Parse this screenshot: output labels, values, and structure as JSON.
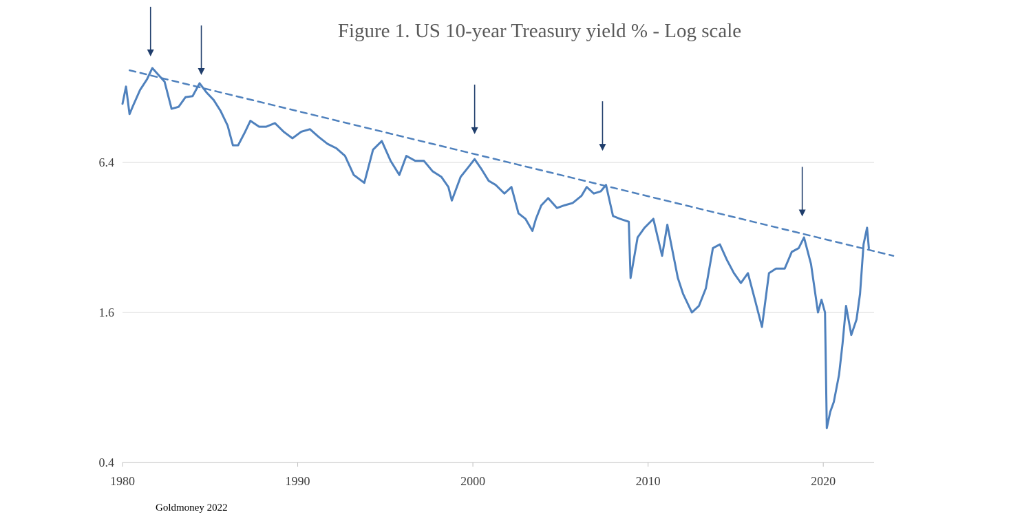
{
  "chart_data": {
    "type": "line",
    "title": "Figure 1. US 10-year Treasury yield % - Log scale",
    "xlabel": "",
    "ylabel": "",
    "y_scale": "log",
    "xlim": [
      1980,
      2024
    ],
    "ylim": [
      0.4,
      25.6
    ],
    "grid": true,
    "legend": "none",
    "x_ticks": [
      "1980",
      "1990",
      "2000",
      "2010",
      "2020"
    ],
    "y_ticks": [
      "0.4",
      "1.6",
      "6.4"
    ],
    "source": "Goldmoney 2022",
    "colors": {
      "series": "#4f81bd",
      "arrow": "#1f3d6b",
      "grid": "#d9d9d9",
      "axis": "#bfbfbf",
      "title": "#595959"
    },
    "series": [
      {
        "style": "solid",
        "x": [
          1980.0,
          1980.2,
          1980.4,
          1980.6,
          1981.0,
          1981.4,
          1981.7,
          1982.0,
          1982.4,
          1982.8,
          1983.2,
          1983.6,
          1984.0,
          1984.4,
          1984.8,
          1985.2,
          1985.6,
          1986.0,
          1986.3,
          1986.6,
          1987.0,
          1987.3,
          1987.8,
          1988.2,
          1988.7,
          1989.2,
          1989.7,
          1990.2,
          1990.7,
          1991.2,
          1991.7,
          1992.2,
          1992.7,
          1993.2,
          1993.8,
          1994.3,
          1994.8,
          1995.3,
          1995.8,
          1996.2,
          1996.7,
          1997.2,
          1997.7,
          1998.2,
          1998.6,
          1998.8,
          1999.3,
          1999.8,
          2000.1,
          2000.5,
          2000.9,
          2001.3,
          2001.8,
          2002.2,
          2002.6,
          2003.0,
          2003.4,
          2003.6,
          2003.9,
          2004.3,
          2004.8,
          2005.2,
          2005.7,
          2006.2,
          2006.5,
          2006.9,
          2007.3,
          2007.6,
          2008.0,
          2008.4,
          2008.9,
          2009.0,
          2009.4,
          2009.8,
          2010.3,
          2010.8,
          2011.1,
          2011.7,
          2012.0,
          2012.5,
          2012.9,
          2013.3,
          2013.7,
          2014.1,
          2014.5,
          2014.9,
          2015.3,
          2015.7,
          2016.1,
          2016.5,
          2016.9,
          2017.3,
          2017.8,
          2018.2,
          2018.6,
          2018.9,
          2019.3,
          2019.7,
          2019.9,
          2020.1,
          2020.2,
          2020.4,
          2020.6,
          2020.9,
          2021.1,
          2021.3,
          2021.6,
          2021.9,
          2022.1,
          2022.3,
          2022.5,
          2022.6
        ],
        "y": [
          11.0,
          12.9,
          10.0,
          10.8,
          12.5,
          13.8,
          15.3,
          14.5,
          13.5,
          10.5,
          10.7,
          11.7,
          11.8,
          13.3,
          12.2,
          11.4,
          10.3,
          9.0,
          7.5,
          7.5,
          8.5,
          9.4,
          8.9,
          8.9,
          9.2,
          8.5,
          8.0,
          8.5,
          8.7,
          8.1,
          7.6,
          7.3,
          6.8,
          5.7,
          5.3,
          7.2,
          7.8,
          6.5,
          5.7,
          6.8,
          6.5,
          6.5,
          5.9,
          5.6,
          5.1,
          4.5,
          5.6,
          6.2,
          6.6,
          6.0,
          5.4,
          5.2,
          4.8,
          5.1,
          4.0,
          3.8,
          3.4,
          3.8,
          4.3,
          4.6,
          4.2,
          4.3,
          4.4,
          4.7,
          5.1,
          4.8,
          4.9,
          5.2,
          3.9,
          3.8,
          3.7,
          2.2,
          3.2,
          3.5,
          3.8,
          2.7,
          3.6,
          2.2,
          1.9,
          1.6,
          1.7,
          2.0,
          2.9,
          3.0,
          2.6,
          2.3,
          2.1,
          2.3,
          1.8,
          1.4,
          2.3,
          2.4,
          2.4,
          2.8,
          2.9,
          3.2,
          2.5,
          1.6,
          1.8,
          1.6,
          0.55,
          0.64,
          0.7,
          0.9,
          1.2,
          1.7,
          1.3,
          1.5,
          1.9,
          3.0,
          3.5,
          2.9
        ]
      },
      {
        "style": "dashed",
        "x": [
          1980.4,
          2024.0
        ],
        "y": [
          15.0,
          2.7
        ]
      }
    ],
    "annotations": [
      {
        "type": "arrow",
        "x": 1981.6,
        "y": 15.8
      },
      {
        "type": "arrow",
        "x": 1984.5,
        "y": 13.3
      },
      {
        "type": "arrow",
        "x": 2000.1,
        "y": 7.7
      },
      {
        "type": "arrow",
        "x": 2007.4,
        "y": 6.6
      },
      {
        "type": "arrow",
        "x": 2018.8,
        "y": 3.6
      }
    ]
  }
}
